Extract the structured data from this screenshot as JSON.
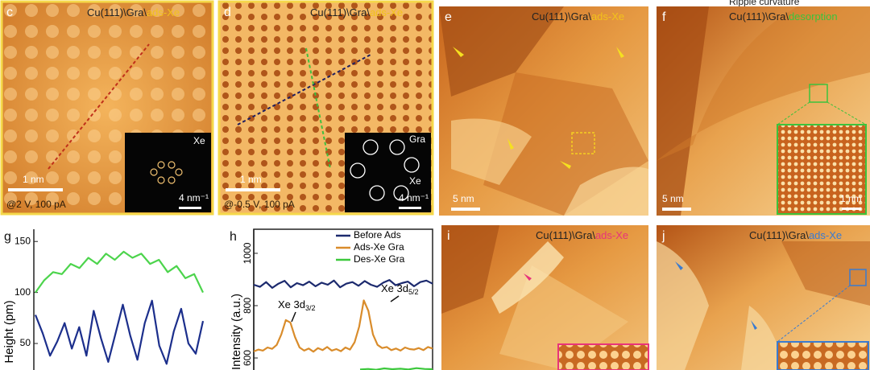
{
  "top_caption": "Ripple curvature",
  "panels": [
    {
      "letter": "c",
      "title": "Cu(111)\\Gra\\",
      "highlight": "ads-Xe",
      "highlight_color": "#f2c21b",
      "scale_bar": "1 nm",
      "inset_labels": [
        "Xe"
      ],
      "inset_scale": "4 nm⁻¹",
      "condition": "@2 V, 100 pA"
    },
    {
      "letter": "d",
      "title": "Cu(111)\\Gra\\",
      "highlight": "ads-Xe",
      "highlight_color": "#f2c21b",
      "scale_bar": "1 nm",
      "inset_labels": [
        "Gra",
        "Xe"
      ],
      "inset_scale": "4 nm⁻¹",
      "condition": "@-0.5 V, 100 pA"
    },
    {
      "letter": "e",
      "title": "Cu(111)\\Gra\\",
      "highlight": "ads-Xe",
      "highlight_color": "#f2c21b",
      "scale_bar": "5 nm"
    },
    {
      "letter": "f",
      "title": "Cu(111)\\Gra\\",
      "highlight": "desorption",
      "highlight_color": "#3cc23c",
      "scale_bar": "5 nm",
      "inset_scale": "1 nm"
    },
    {
      "letter": "i",
      "title": "Cu(111)\\Gra\\",
      "highlight": "ads-Xe",
      "highlight_color": "#e8337a"
    },
    {
      "letter": "j",
      "title": "Cu(111)\\Gra\\",
      "highlight": "ads-Xe",
      "highlight_color": "#3a7bd0"
    }
  ],
  "chart_data": [
    {
      "type": "line",
      "letter": "g",
      "y_label": "Height (pm)",
      "ylim": [
        24,
        162
      ],
      "yticks": [
        50,
        100,
        150
      ],
      "series": [
        {
          "color": "#4cd44c",
          "values": [
            100,
            112,
            120,
            118,
            128,
            124,
            134,
            128,
            138,
            132,
            140,
            134,
            138,
            128,
            132,
            120,
            126,
            114,
            118,
            100
          ]
        },
        {
          "color": "#1c2f8c",
          "values": [
            78,
            60,
            38,
            52,
            70,
            45,
            66,
            38,
            82,
            55,
            32,
            60,
            88,
            58,
            34,
            70,
            92,
            48,
            30,
            62,
            84,
            50,
            40,
            72
          ]
        }
      ]
    },
    {
      "type": "line",
      "letter": "h",
      "y_label": "Intensity (a.u.)",
      "ylim": [
        554,
        1092
      ],
      "yticks": [
        600,
        800,
        1000
      ],
      "series": [
        {
          "name": "Before  Ads",
          "color": "#1c2a6e",
          "values": [
            880,
            872,
            890,
            868,
            884,
            895,
            870,
            886,
            878,
            892,
            874,
            888,
            880,
            896,
            870,
            884,
            890,
            876,
            894,
            880,
            872,
            888,
            898,
            878,
            886,
            892,
            874,
            890,
            896,
            884
          ]
        },
        {
          "name": "Ads-Xe Gra",
          "color": "#d98c2b",
          "values": [
            625,
            632,
            628,
            640,
            635,
            650,
            690,
            745,
            735,
            680,
            640,
            628,
            636,
            624,
            638,
            630,
            642,
            628,
            634,
            626,
            640,
            632,
            660,
            720,
            820,
            780,
            690,
            650,
            638,
            642,
            630,
            636,
            628,
            640,
            634,
            632,
            638,
            630,
            642,
            636
          ]
        },
        {
          "name": "Des-Xe Gra",
          "color": "#3cc83c",
          "values": [
            556,
            558,
            555,
            560,
            557,
            559,
            556,
            561,
            558,
            557
          ]
        }
      ],
      "annotations": [
        {
          "text": "Xe 3d",
          "sub": "3/2"
        },
        {
          "text": "Xe 3d",
          "sub": "5/2"
        }
      ]
    }
  ]
}
